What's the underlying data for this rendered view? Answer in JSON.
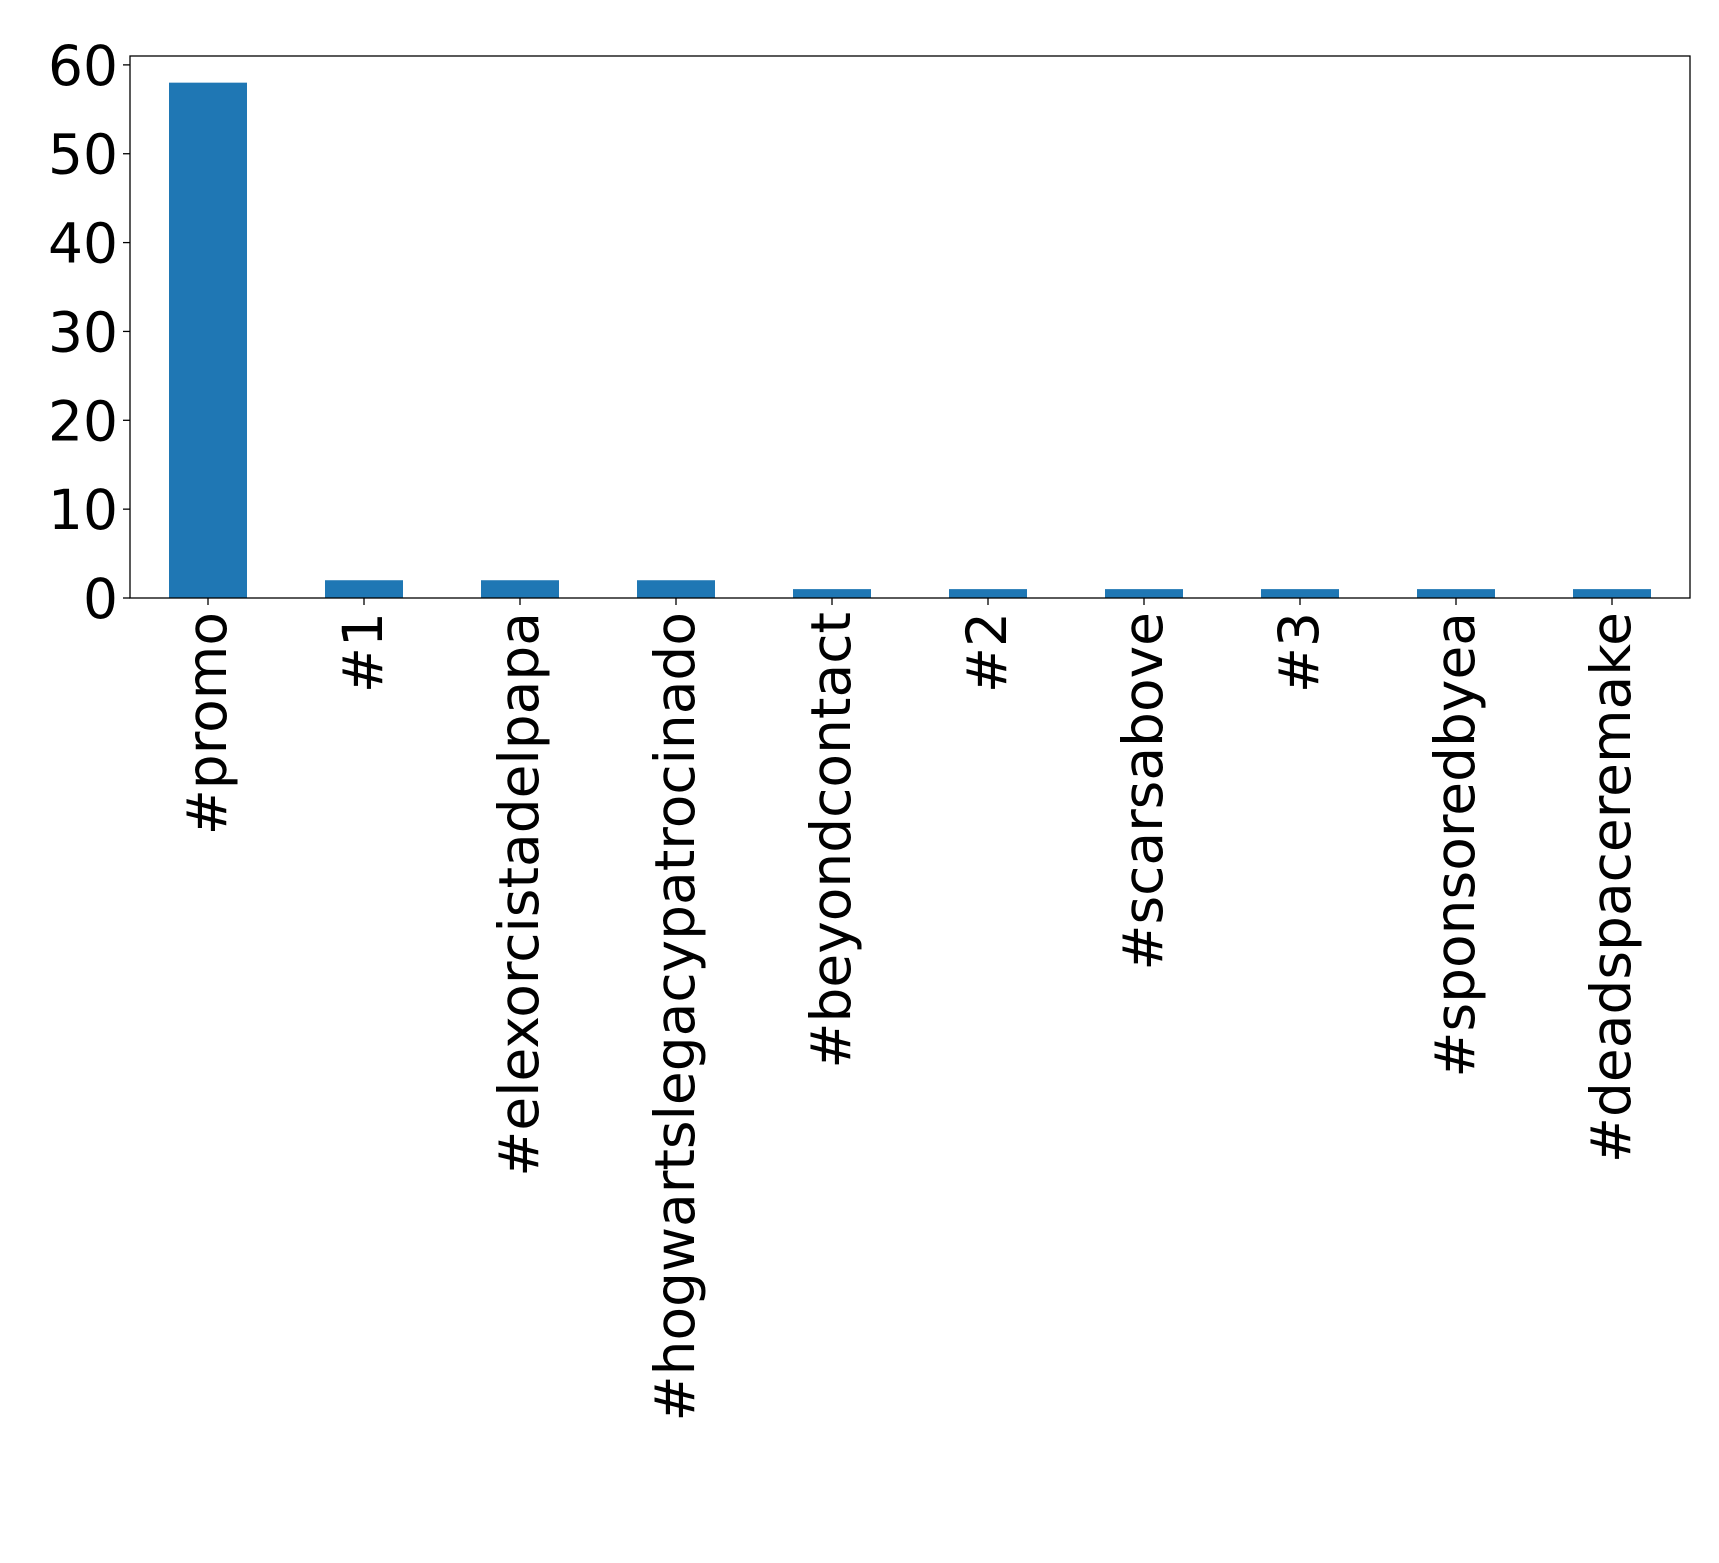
{
  "chart_data": {
    "type": "bar",
    "categories": [
      "#promo",
      "#1",
      "#elexorcistadelpapa",
      "#hogwartslegacypatrocinado",
      "#beyondcontact",
      "#2",
      "#scarsabove",
      "#3",
      "#sponsoredbyea",
      "#deadspaceremake"
    ],
    "values": [
      58,
      2,
      2,
      2,
      1,
      1,
      1,
      1,
      1,
      1
    ],
    "title": "",
    "xlabel": "",
    "ylabel": "",
    "ylim": [
      0,
      61
    ],
    "yticks": [
      0,
      10,
      20,
      30,
      40,
      50,
      60
    ],
    "grid": false,
    "legend": "none",
    "bar_color": "#1f77b4",
    "axis_color": "#000000"
  }
}
